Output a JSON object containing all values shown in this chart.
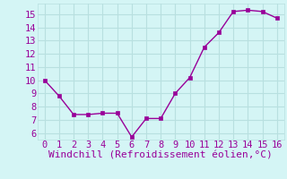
{
  "x": [
    0,
    1,
    2,
    3,
    4,
    5,
    6,
    7,
    8,
    9,
    10,
    11,
    12,
    13,
    14,
    15,
    16
  ],
  "y": [
    10.0,
    8.8,
    7.4,
    7.4,
    7.5,
    7.5,
    5.7,
    7.1,
    7.1,
    9.0,
    10.2,
    12.5,
    13.6,
    15.2,
    15.3,
    15.2,
    14.7
  ],
  "line_color": "#990099",
  "marker": "s",
  "markersize": 2.5,
  "linewidth": 1.0,
  "xlabel": "Windchill (Refroidissement éolien,°C)",
  "xlabel_fontsize": 8,
  "background_color": "#d4f5f5",
  "grid_color": "#b8e0e0",
  "xlim": [
    -0.5,
    16.5
  ],
  "ylim": [
    5.5,
    15.8
  ],
  "yticks": [
    6,
    7,
    8,
    9,
    10,
    11,
    12,
    13,
    14,
    15
  ],
  "xticks": [
    0,
    1,
    2,
    3,
    4,
    5,
    6,
    7,
    8,
    9,
    10,
    11,
    12,
    13,
    14,
    15,
    16
  ],
  "tick_fontsize": 7.5,
  "tick_color": "#990099"
}
